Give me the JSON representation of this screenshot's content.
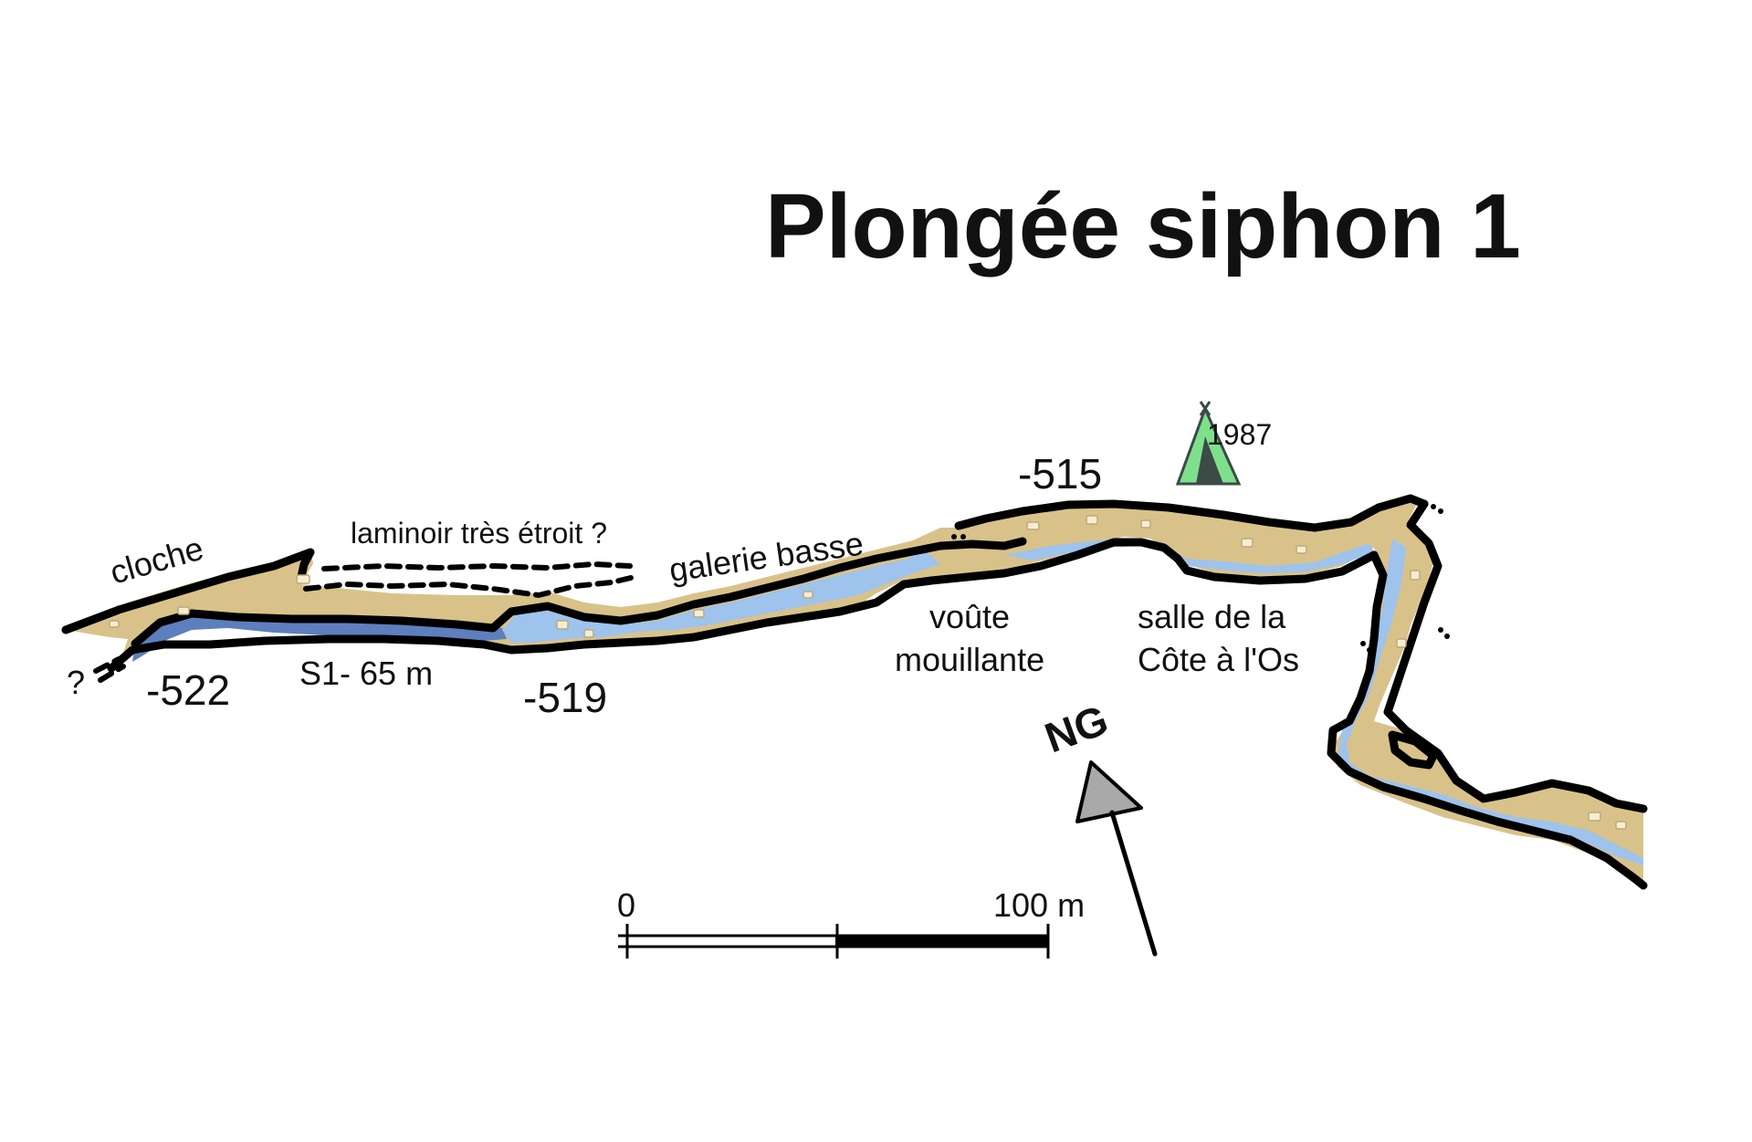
{
  "title": "Plongée siphon 1",
  "labels": {
    "cloche": "cloche",
    "laminoir": "laminoir très étroit ?",
    "galerie": "galerie basse",
    "voute_1": "voûte",
    "voute_2": "mouillante",
    "salle_1": "salle de la",
    "salle_2": "Côte à l'Os",
    "siphon": "S1- 65 m",
    "question": "?",
    "bivouac_year": "1987"
  },
  "depths": {
    "d522": "-522",
    "d519": "-519",
    "d515": "-515"
  },
  "scale_bar": {
    "start_label": "0",
    "end_label": "100 m",
    "length_m": 100
  },
  "north": {
    "label": "NG"
  },
  "colors": {
    "floor": "#d9c28a",
    "water_light": "#9ec3ec",
    "water_deep": "#5d7fbd",
    "tent_light": "#7ee08c",
    "tent_dark": "#3c4a48",
    "arrow_fill": "#a9a9a9"
  },
  "icons": {
    "bivouac": "tent-icon",
    "north": "north-arrow-icon"
  }
}
